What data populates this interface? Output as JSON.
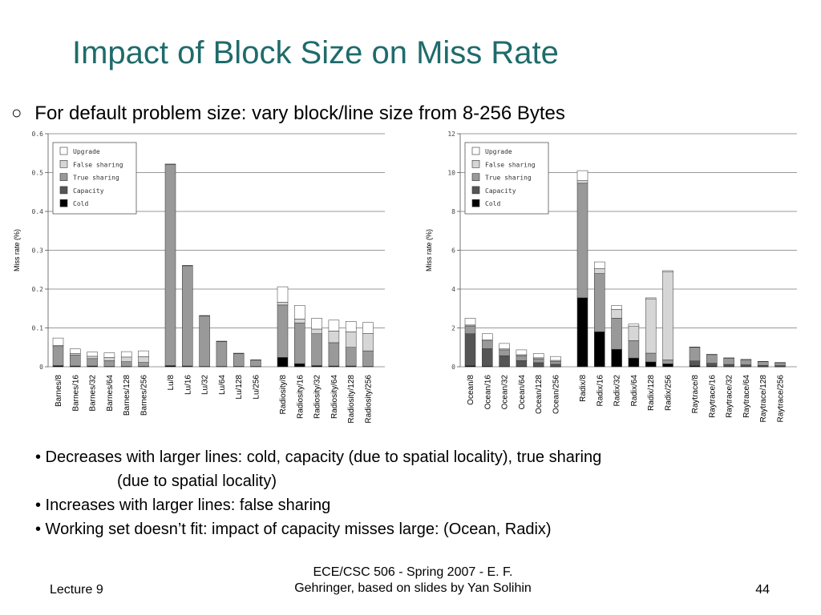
{
  "slide": {
    "title": "Impact of Block Size on Miss Rate",
    "subtitle_bullet": "○",
    "subtitle": "For default problem size: vary block/line size from 8-256 Bytes"
  },
  "bullets": [
    "• Decreases with larger lines: cold, capacity (due to spatial locality), true sharing",
    "(due to spatial locality)",
    "• Increases with larger lines: false sharing",
    "• Working set doesn’t fit: impact of capacity misses large:   (Ocean, Radix)"
  ],
  "footer": {
    "left": "Lecture 9",
    "center_line1": "ECE/CSC 506 - Spring 2007 - E. F.",
    "center_line2": "Gehringer, based on slides by Yan Solihin",
    "page": "44"
  },
  "colors": {
    "title": "#1f6b6b",
    "cold": "#000000",
    "capacity": "#555555",
    "true_sharing": "#999999",
    "false_sharing": "#d6d6d6",
    "upgrade": "#ffffff"
  },
  "chart_data": [
    {
      "type": "bar",
      "stacked": true,
      "ylabel": "Miss rate (%)",
      "ylim": [
        0,
        0.6
      ],
      "yticks": [
        0,
        0.1,
        0.2,
        0.3,
        0.4,
        0.5,
        0.6
      ],
      "ytick_labels": [
        "0",
        "0.1",
        "0.2",
        "0.3",
        "0.4",
        "0.5",
        "0.6"
      ],
      "legend_position": "top-left",
      "grid": "horizontal",
      "legend": [
        "Upgrade",
        "False sharing",
        "True sharing",
        "Capacity",
        "Cold"
      ],
      "groups": [
        [
          "Barnes/8",
          "Barnes/16",
          "Barnes/32",
          "Barnes/64",
          "Barnes/128",
          "Barnes/256"
        ],
        [
          "Lu/8",
          "Lu/16",
          "Lu/32",
          "Lu/64",
          "Lu/128",
          "Lu/256"
        ],
        [
          "Radiosity/8",
          "Radiosity/16",
          "Radiosity/32",
          "Radiosity/64",
          "Radiosity/128",
          "Radiosity/256"
        ]
      ],
      "categories": [
        "Barnes/8",
        "Barnes/16",
        "Barnes/32",
        "Barnes/64",
        "Barnes/128",
        "Barnes/256",
        "Lu/8",
        "Lu/16",
        "Lu/32",
        "Lu/64",
        "Lu/128",
        "Lu/256",
        "Radiosity/8",
        "Radiosity/16",
        "Radiosity/32",
        "Radiosity/64",
        "Radiosity/128",
        "Radiosity/256"
      ],
      "series": [
        {
          "name": "Cold",
          "values": [
            0.003,
            0.002,
            0.002,
            0.001,
            0.001,
            0.001,
            0.003,
            0.002,
            0.001,
            0.001,
            0.001,
            0.001,
            0.024,
            0.008,
            0.003,
            0.002,
            0.002,
            0.001
          ]
        },
        {
          "name": "Capacity",
          "values": [
            0,
            0,
            0,
            0,
            0,
            0,
            0,
            0,
            0,
            0,
            0,
            0,
            0,
            0,
            0,
            0,
            0,
            0
          ]
        },
        {
          "name": "True sharing",
          "values": [
            0.049,
            0.028,
            0.019,
            0.015,
            0.012,
            0.01,
            0.518,
            0.258,
            0.13,
            0.064,
            0.033,
            0.016,
            0.135,
            0.105,
            0.082,
            0.06,
            0.048,
            0.04
          ]
        },
        {
          "name": "False sharing",
          "values": [
            0.003,
            0.004,
            0.006,
            0.008,
            0.012,
            0.015,
            0.001,
            0.001,
            0.001,
            0.001,
            0.001,
            0.001,
            0.007,
            0.01,
            0.012,
            0.03,
            0.04,
            0.045
          ]
        },
        {
          "name": "Upgrade",
          "values": [
            0.019,
            0.012,
            0.011,
            0.012,
            0.014,
            0.015,
            0,
            0,
            0,
            0,
            0,
            0,
            0.04,
            0.035,
            0.028,
            0.028,
            0.027,
            0.028
          ]
        }
      ]
    },
    {
      "type": "bar",
      "stacked": true,
      "ylabel": "Miss rate (%)",
      "ylim": [
        0,
        12
      ],
      "yticks": [
        0,
        2,
        4,
        6,
        8,
        10,
        12
      ],
      "ytick_labels": [
        "0",
        "2",
        "4",
        "6",
        "8",
        "10",
        "12"
      ],
      "legend_position": "top-left",
      "grid": "horizontal",
      "legend": [
        "Upgrade",
        "False sharing",
        "True sharing",
        "Capacity",
        "Cold"
      ],
      "groups": [
        [
          "Ocean/8",
          "Ocean/16",
          "Ocean/32",
          "Ocean/64",
          "Ocean/128",
          "Ocean/256"
        ],
        [
          "Radix/8",
          "Radix/16",
          "Radix/32",
          "Radix/64",
          "Radix/128",
          "Radix/256"
        ],
        [
          "Raytrace/8",
          "Raytrace/16",
          "Raytrace/32",
          "Raytrace/64",
          "Raytrace/128",
          "Raytrace/256"
        ]
      ],
      "categories": [
        "Ocean/8",
        "Ocean/16",
        "Ocean/32",
        "Ocean/64",
        "Ocean/128",
        "Ocean/256",
        "Radix/8",
        "Radix/16",
        "Radix/32",
        "Radix/64",
        "Radix/128",
        "Radix/256",
        "Raytrace/8",
        "Raytrace/16",
        "Raytrace/32",
        "Raytrace/64",
        "Raytrace/128",
        "Raytrace/256"
      ],
      "series": [
        {
          "name": "Cold",
          "values": [
            0.05,
            0.03,
            0.02,
            0.02,
            0.01,
            0.01,
            3.55,
            1.8,
            0.9,
            0.45,
            0.25,
            0.15,
            0.05,
            0.03,
            0.02,
            0.02,
            0.01,
            0.01
          ]
        },
        {
          "name": "Capacity",
          "values": [
            1.65,
            0.9,
            0.55,
            0.3,
            0.2,
            0.12,
            0,
            0,
            0,
            0,
            0,
            0,
            0.25,
            0.15,
            0.1,
            0.08,
            0.06,
            0.05
          ]
        },
        {
          "name": "True sharing",
          "values": [
            0.4,
            0.4,
            0.3,
            0.25,
            0.2,
            0.15,
            5.9,
            3.0,
            1.6,
            0.9,
            0.45,
            0.2,
            0.7,
            0.45,
            0.33,
            0.27,
            0.2,
            0.15
          ]
        },
        {
          "name": "False sharing",
          "values": [
            0.05,
            0.05,
            0.05,
            0.05,
            0.05,
            0.05,
            0.15,
            0.25,
            0.45,
            0.75,
            2.8,
            4.55,
            0,
            0,
            0,
            0,
            0,
            0
          ]
        },
        {
          "name": "Upgrade",
          "values": [
            0.35,
            0.32,
            0.28,
            0.25,
            0.22,
            0.2,
            0.5,
            0.35,
            0.2,
            0.1,
            0.05,
            0.05,
            0.02,
            0.01,
            0.01,
            0.01,
            0.01,
            0.01
          ]
        }
      ]
    }
  ]
}
